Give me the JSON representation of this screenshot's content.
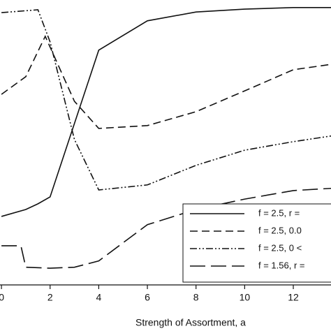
{
  "chart_data": {
    "type": "line",
    "x_label": "Strength of Assortment, a",
    "xlim": [
      -0.06,
      13.55
    ],
    "xticks": [
      0,
      2,
      4,
      6,
      8,
      10,
      12
    ],
    "ylim": [
      9.7,
      100
    ],
    "legend": "lower right",
    "series": [
      {
        "name": "f = 2.5, r =",
        "color": "#111111",
        "dash": "none",
        "x": [
          0,
          1,
          1.5,
          2,
          4,
          6,
          8,
          10,
          12,
          13.55
        ],
        "values": [
          31.4,
          33.6,
          35.4,
          37.6,
          84.1,
          93.4,
          96.2,
          97.1,
          97.6,
          97.6
        ]
      },
      {
        "name": "f = 2.5, 0.0",
        "color": "#111111",
        "dash": "11,6",
        "x": [
          0,
          1,
          1.8,
          3,
          4,
          6,
          8,
          10,
          12,
          13.55
        ],
        "values": [
          70.1,
          75.7,
          88.5,
          67.9,
          59.3,
          60.2,
          64.6,
          71.2,
          77.9,
          79.6
        ]
      },
      {
        "name": "f = 2.5, 0 <",
        "color": "#111111",
        "dash": "10,3,2,3,2,3",
        "x": [
          0,
          1.5,
          2,
          3,
          4,
          6,
          8,
          10,
          12,
          13.55
        ],
        "values": [
          96.0,
          96.9,
          86.7,
          55.8,
          39.8,
          41.4,
          47.6,
          52.4,
          55.1,
          56.9
        ]
      },
      {
        "name": "f = 1.56, r =",
        "color": "#111111",
        "dash": "22,8",
        "x": [
          0,
          0.8,
          1,
          2,
          3,
          4,
          6,
          8,
          10,
          12,
          13.55
        ],
        "values": [
          22.1,
          22.1,
          15.3,
          15.0,
          15.3,
          17.3,
          28.8,
          33.6,
          36.9,
          39.6,
          40.3
        ]
      }
    ]
  }
}
